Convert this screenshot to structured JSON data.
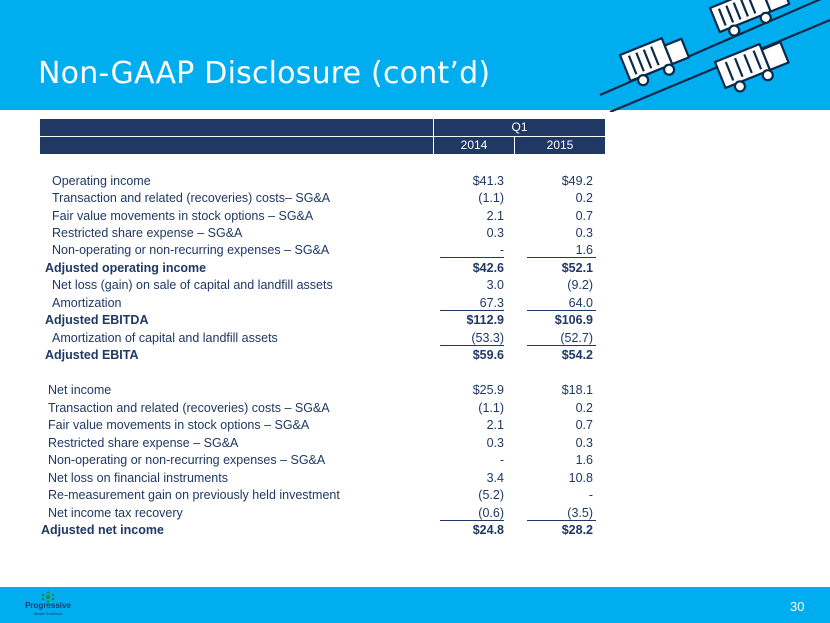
{
  "title": "Non-GAAP Disclosure (cont’d)",
  "page_number": "30",
  "logo": {
    "name": "Progressive",
    "tagline": "Waste Solutions"
  },
  "table": {
    "period": "Q1",
    "columns": [
      "2014",
      "2015"
    ],
    "rows": [
      {
        "label": "Operating income",
        "v2014": "$41.3",
        "v2015": "$49.2",
        "bold": false
      },
      {
        "label": "Transaction and related (recoveries) costs– SG&A",
        "v2014": "(1.1)",
        "v2015": "0.2",
        "bold": false
      },
      {
        "label": "Fair value movements in stock options – SG&A",
        "v2014": "2.1",
        "v2015": "0.7",
        "bold": false
      },
      {
        "label": "Restricted share expense – SG&A",
        "v2014": "0.3",
        "v2015": "0.3",
        "bold": false
      },
      {
        "label": "Non-operating or non-recurring expenses – SG&A",
        "v2014": "-",
        "v2015": "1.6",
        "bold": false
      },
      {
        "label": "Adjusted operating income",
        "v2014": "$42.6",
        "v2015": "$52.1",
        "bold": true
      },
      {
        "label": "Net loss (gain) on sale of capital and landfill assets",
        "v2014": "3.0",
        "v2015": "(9.2)",
        "bold": false
      },
      {
        "label": "Amortization",
        "v2014": "67.3",
        "v2015": "64.0",
        "bold": false
      },
      {
        "label": "Adjusted EBITDA",
        "v2014": "$112.9",
        "v2015": "$106.9",
        "bold": true
      },
      {
        "label": "Amortization of capital and landfill assets",
        "v2014": "(53.3)",
        "v2015": "(52.7)",
        "bold": false
      },
      {
        "label": "Adjusted EBITA",
        "v2014": "$59.6",
        "v2015": "$54.2",
        "bold": true
      },
      {
        "label": "Net income",
        "v2014": "$25.9",
        "v2015": "$18.1",
        "bold": false
      },
      {
        "label": "Transaction and related (recoveries) costs –  SG&A",
        "v2014": "(1.1)",
        "v2015": "0.2",
        "bold": false
      },
      {
        "label": "Fair value movements in stock options – SG&A",
        "v2014": "2.1",
        "v2015": "0.7",
        "bold": false
      },
      {
        "label": "Restricted share expense –  SG&A",
        "v2014": "0.3",
        "v2015": "0.3",
        "bold": false
      },
      {
        "label": "Non-operating or non-recurring expenses – SG&A",
        "v2014": "-",
        "v2015": "1.6",
        "bold": false
      },
      {
        "label": "Net loss on financial instruments",
        "v2014": "3.4",
        "v2015": "10.8",
        "bold": false
      },
      {
        "label": "Re-measurement gain on previously held investment",
        "v2014": "(5.2)",
        "v2015": "-",
        "bold": false
      },
      {
        "label": "Net income tax recovery",
        "v2014": "(0.6)",
        "v2015": "(3.5)",
        "bold": false
      },
      {
        "label": "Adjusted net income",
        "v2014": "$24.8",
        "v2015": "$28.2",
        "bold": true
      }
    ]
  },
  "colors": {
    "header_bg": "#00aeef",
    "table_header_bg": "#1f3864",
    "text": "#1f3864"
  }
}
